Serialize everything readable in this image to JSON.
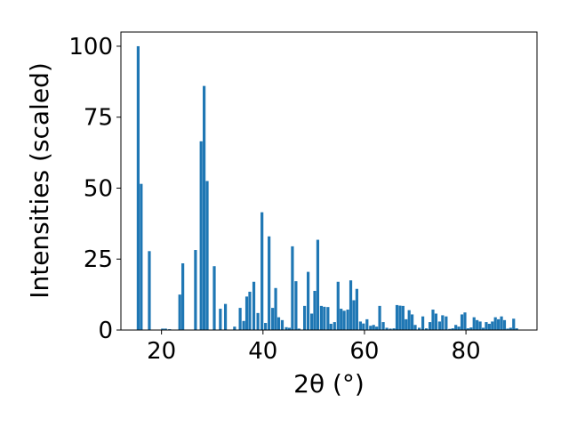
{
  "chart_data": {
    "type": "bar",
    "xlabel": "2θ (°)",
    "ylabel": "Intensities (scaled)",
    "xlim": [
      12,
      94
    ],
    "ylim": [
      0,
      105
    ],
    "xticks": [
      20,
      40,
      60,
      80
    ],
    "yticks": [
      0,
      25,
      50,
      75,
      100
    ],
    "bar_color": "#1f77b4",
    "grid": false,
    "bars": [
      {
        "x": 15.4,
        "y": 100
      },
      {
        "x": 16.0,
        "y": 51.5
      },
      {
        "x": 17.6,
        "y": 27.8
      },
      {
        "x": 20.2,
        "y": 0.5
      },
      {
        "x": 20.8,
        "y": 0.5
      },
      {
        "x": 21.6,
        "y": 0.3
      },
      {
        "x": 23.6,
        "y": 12.5
      },
      {
        "x": 24.2,
        "y": 23.5
      },
      {
        "x": 26.7,
        "y": 28.2
      },
      {
        "x": 27.8,
        "y": 66.5
      },
      {
        "x": 28.4,
        "y": 86
      },
      {
        "x": 29.0,
        "y": 52.5
      },
      {
        "x": 30.4,
        "y": 22.5
      },
      {
        "x": 31.6,
        "y": 7.5
      },
      {
        "x": 32.6,
        "y": 9.2
      },
      {
        "x": 34.4,
        "y": 1.2
      },
      {
        "x": 35.5,
        "y": 7.8
      },
      {
        "x": 36.2,
        "y": 3.2
      },
      {
        "x": 36.8,
        "y": 11.8
      },
      {
        "x": 37.4,
        "y": 13.5
      },
      {
        "x": 38.2,
        "y": 17
      },
      {
        "x": 39.0,
        "y": 6
      },
      {
        "x": 39.8,
        "y": 41.5
      },
      {
        "x": 40.5,
        "y": 2.5
      },
      {
        "x": 41.2,
        "y": 33
      },
      {
        "x": 41.9,
        "y": 7.8
      },
      {
        "x": 42.5,
        "y": 14.8
      },
      {
        "x": 43.1,
        "y": 4.5
      },
      {
        "x": 43.8,
        "y": 3.5
      },
      {
        "x": 44.6,
        "y": 1
      },
      {
        "x": 45.2,
        "y": 0.8
      },
      {
        "x": 45.8,
        "y": 29.5
      },
      {
        "x": 46.5,
        "y": 17.2
      },
      {
        "x": 47.1,
        "y": 0.5
      },
      {
        "x": 48.2,
        "y": 8.5
      },
      {
        "x": 48.9,
        "y": 20.5
      },
      {
        "x": 49.6,
        "y": 5.8
      },
      {
        "x": 50.2,
        "y": 13.8
      },
      {
        "x": 50.8,
        "y": 31.8
      },
      {
        "x": 51.5,
        "y": 8.5
      },
      {
        "x": 52.1,
        "y": 8.2
      },
      {
        "x": 52.8,
        "y": 8.1
      },
      {
        "x": 53.4,
        "y": 2.2
      },
      {
        "x": 54.1,
        "y": 2.8
      },
      {
        "x": 54.8,
        "y": 17
      },
      {
        "x": 55.4,
        "y": 7.5
      },
      {
        "x": 56.0,
        "y": 6.8
      },
      {
        "x": 56.7,
        "y": 7.2
      },
      {
        "x": 57.3,
        "y": 17.5
      },
      {
        "x": 57.9,
        "y": 10.5
      },
      {
        "x": 58.5,
        "y": 14.5
      },
      {
        "x": 59.2,
        "y": 3
      },
      {
        "x": 59.8,
        "y": 2.3
      },
      {
        "x": 60.5,
        "y": 3.8
      },
      {
        "x": 61.2,
        "y": 1.5
      },
      {
        "x": 61.8,
        "y": 1.8
      },
      {
        "x": 62.4,
        "y": 1.2
      },
      {
        "x": 63.0,
        "y": 8.5
      },
      {
        "x": 63.7,
        "y": 2.8
      },
      {
        "x": 64.4,
        "y": 0.8
      },
      {
        "x": 65.1,
        "y": 0.5
      },
      {
        "x": 65.8,
        "y": 0.6
      },
      {
        "x": 66.4,
        "y": 8.8
      },
      {
        "x": 67.0,
        "y": 8.6
      },
      {
        "x": 67.6,
        "y": 8.5
      },
      {
        "x": 68.2,
        "y": 3.8
      },
      {
        "x": 68.8,
        "y": 7
      },
      {
        "x": 69.4,
        "y": 5.5
      },
      {
        "x": 70.0,
        "y": 1.8
      },
      {
        "x": 70.8,
        "y": 0.8
      },
      {
        "x": 71.5,
        "y": 4.8
      },
      {
        "x": 72.2,
        "y": 0.6
      },
      {
        "x": 72.9,
        "y": 2.8
      },
      {
        "x": 73.5,
        "y": 7.2
      },
      {
        "x": 74.1,
        "y": 5.8
      },
      {
        "x": 74.8,
        "y": 3
      },
      {
        "x": 75.4,
        "y": 5.2
      },
      {
        "x": 76.1,
        "y": 4.8
      },
      {
        "x": 76.8,
        "y": 0.4
      },
      {
        "x": 77.4,
        "y": 0.6
      },
      {
        "x": 78.0,
        "y": 1.8
      },
      {
        "x": 78.6,
        "y": 1.2
      },
      {
        "x": 79.2,
        "y": 5.5
      },
      {
        "x": 79.8,
        "y": 6.2
      },
      {
        "x": 80.4,
        "y": 0.6
      },
      {
        "x": 81.0,
        "y": 0.9
      },
      {
        "x": 81.6,
        "y": 4.5
      },
      {
        "x": 82.2,
        "y": 3.5
      },
      {
        "x": 82.8,
        "y": 3
      },
      {
        "x": 83.4,
        "y": 0.8
      },
      {
        "x": 84.0,
        "y": 2.8
      },
      {
        "x": 84.6,
        "y": 2.2
      },
      {
        "x": 85.2,
        "y": 3
      },
      {
        "x": 85.8,
        "y": 4.5
      },
      {
        "x": 86.4,
        "y": 3.8
      },
      {
        "x": 87.0,
        "y": 4.8
      },
      {
        "x": 87.6,
        "y": 3.5
      },
      {
        "x": 88.2,
        "y": 0.5
      },
      {
        "x": 88.8,
        "y": 0.8
      },
      {
        "x": 89.4,
        "y": 4
      },
      {
        "x": 90.0,
        "y": 0.6
      }
    ]
  }
}
